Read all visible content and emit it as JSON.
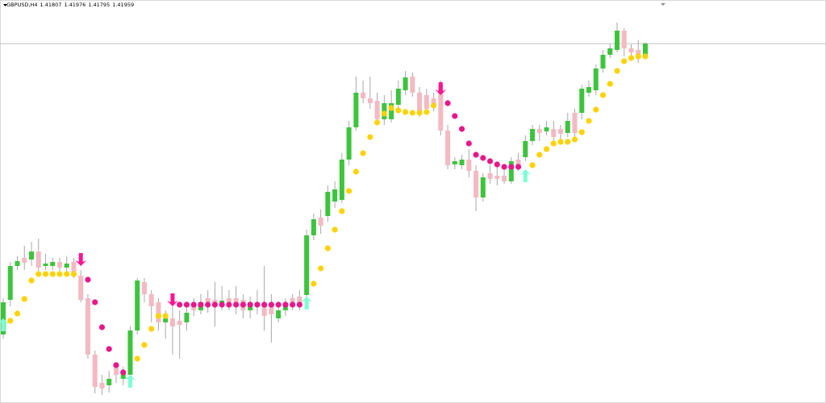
{
  "chart_data": {
    "type": "candlestick",
    "title": "GBPUSD,H4",
    "ylim": [
      1.375,
      1.425
    ],
    "price_line": 1.41959,
    "up_color": "#3dc43d",
    "down_color": "#f4b9c2",
    "open": [
      1.3835,
      1.3878,
      1.392,
      1.393,
      1.3928,
      1.3938,
      1.392,
      1.392,
      1.3925,
      1.3918,
      1.3925,
      1.3908,
      1.388,
      1.381,
      1.3775,
      1.3772,
      1.3795,
      1.378,
      1.3785,
      1.384,
      1.39,
      1.3885,
      1.3875,
      1.385,
      1.3855,
      1.3852,
      1.385,
      1.387,
      1.3865,
      1.388,
      1.3878,
      1.3872,
      1.388,
      1.388,
      1.3878,
      1.3865,
      1.3875,
      1.3872,
      1.387,
      1.3855,
      1.3865,
      1.388,
      1.3882,
      1.3884,
      1.3958,
      1.398,
      1.3982,
      1.4,
      1.4002,
      1.4052,
      1.4092,
      1.4135,
      1.4128,
      1.4125,
      1.4102,
      1.4102,
      1.412,
      1.4138,
      1.4155,
      1.4135,
      1.4132,
      1.4128,
      1.4145,
      1.4088,
      1.4046,
      1.4045,
      1.4052,
      1.4038,
      1.4005,
      1.4035,
      1.4032,
      1.4032,
      1.4025,
      1.4052,
      1.4055,
      1.4075,
      1.409,
      1.4087,
      1.409,
      1.409,
      1.4085,
      1.411,
      1.411,
      1.4135,
      1.4138,
      1.4165,
      1.4182,
      1.4188,
      1.4212,
      1.419,
      1.4188,
      1.41807
    ],
    "high": [
      1.388,
      1.3925,
      1.3932,
      1.3945,
      1.395,
      1.3954,
      1.3935,
      1.393,
      1.393,
      1.3932,
      1.393,
      1.3915,
      1.3885,
      1.3815,
      1.3785,
      1.379,
      1.38,
      1.3795,
      1.3845,
      1.3905,
      1.3905,
      1.389,
      1.388,
      1.3865,
      1.387,
      1.3865,
      1.387,
      1.388,
      1.3885,
      1.389,
      1.39,
      1.3895,
      1.389,
      1.3895,
      1.3885,
      1.3882,
      1.389,
      1.392,
      1.3885,
      1.3875,
      1.388,
      1.3885,
      1.389,
      1.3965,
      1.3985,
      1.399,
      1.402,
      1.4025,
      1.406,
      1.41,
      1.4155,
      1.415,
      1.4155,
      1.4135,
      1.4132,
      1.4138,
      1.415,
      1.4162,
      1.416,
      1.4142,
      1.414,
      1.4135,
      1.415,
      1.4095,
      1.4055,
      1.4058,
      1.4065,
      1.4045,
      1.4035,
      1.4045,
      1.4045,
      1.404,
      1.4055,
      1.406,
      1.4082,
      1.4095,
      1.4095,
      1.41,
      1.41,
      1.4095,
      1.411,
      1.4115,
      1.4145,
      1.415,
      1.417,
      1.4188,
      1.4195,
      1.4222,
      1.4215,
      1.4195,
      1.42,
      1.41976
    ],
    "low": [
      1.383,
      1.387,
      1.3915,
      1.3915,
      1.392,
      1.3914,
      1.3915,
      1.3915,
      1.3914,
      1.391,
      1.3905,
      1.3875,
      1.3805,
      1.3762,
      1.376,
      1.3763,
      1.3775,
      1.3772,
      1.378,
      1.3835,
      1.3875,
      1.385,
      1.384,
      1.383,
      1.381,
      1.3805,
      1.384,
      1.3858,
      1.386,
      1.3862,
      1.3845,
      1.3865,
      1.3865,
      1.386,
      1.3855,
      1.3855,
      1.386,
      1.384,
      1.3825,
      1.385,
      1.3858,
      1.3865,
      1.3865,
      1.388,
      1.3952,
      1.396,
      1.3975,
      1.3992,
      1.3998,
      1.4045,
      1.4088,
      1.4122,
      1.4115,
      1.4095,
      1.4095,
      1.4098,
      1.4115,
      1.4132,
      1.413,
      1.4105,
      1.411,
      1.4112,
      1.4082,
      1.404,
      1.404,
      1.404,
      1.403,
      1.3988,
      1.4,
      1.4022,
      1.402,
      1.4022,
      1.4022,
      1.4038,
      1.405,
      1.407,
      1.4075,
      1.4082,
      1.407,
      1.4075,
      1.408,
      1.4078,
      1.4102,
      1.413,
      1.4132,
      1.416,
      1.4178,
      1.4185,
      1.418,
      1.4178,
      1.4172,
      1.41795
    ],
    "close": [
      1.3875,
      1.392,
      1.3926,
      1.3924,
      1.3938,
      1.3918,
      1.3923,
      1.3925,
      1.3918,
      1.3923,
      1.3908,
      1.3878,
      1.381,
      1.377,
      1.3768,
      1.378,
      1.3785,
      1.3788,
      1.384,
      1.3902,
      1.3885,
      1.387,
      1.385,
      1.3855,
      1.3845,
      1.3847,
      1.3862,
      1.3865,
      1.3875,
      1.3875,
      1.387,
      1.3877,
      1.3875,
      1.3872,
      1.3865,
      1.3875,
      1.387,
      1.3858,
      1.386,
      1.3865,
      1.3874,
      1.3875,
      1.3872,
      1.3958,
      1.3978,
      1.397,
      1.4012,
      1.4015,
      1.4052,
      1.4092,
      1.4135,
      1.4128,
      1.4122,
      1.4102,
      1.4122,
      1.4122,
      1.414,
      1.4154,
      1.4135,
      1.411,
      1.4115,
      1.4118,
      1.4088,
      1.4045,
      1.405,
      1.4052,
      1.4038,
      1.4005,
      1.403,
      1.4028,
      1.4028,
      1.4025,
      1.405,
      1.4045,
      1.4075,
      1.409,
      1.4085,
      1.4092,
      1.408,
      1.4084,
      1.41,
      1.4085,
      1.414,
      1.4142,
      1.4165,
      1.4182,
      1.419,
      1.4212,
      1.419,
      1.4185,
      1.4178,
      1.41959
    ],
    "series": [
      {
        "color": "#ffd200",
        "values": [
          null,
          1.3852,
          1.3861,
          1.3879,
          1.3902,
          1.391,
          1.391,
          1.391,
          1.391,
          1.391,
          1.391,
          null,
          null,
          null,
          null,
          null,
          null,
          null,
          null,
          1.3805,
          1.3822,
          1.3842,
          1.3858,
          1.3858,
          null,
          null,
          null,
          null,
          null,
          null,
          null,
          null,
          null,
          null,
          null,
          null,
          null,
          null,
          null,
          null,
          null,
          null,
          null,
          null,
          1.3898,
          1.3917,
          1.3942,
          1.3965,
          1.3988,
          1.4013,
          1.4037,
          1.406,
          1.408,
          1.4098,
          1.4109,
          1.4116,
          1.4113,
          1.4111,
          1.411,
          1.411,
          1.4111,
          1.4119,
          null,
          null,
          null,
          null,
          null,
          null,
          null,
          null,
          null,
          null,
          null,
          null,
          null,
          1.4045,
          1.4058,
          1.4065,
          1.4072,
          1.4074,
          1.4074,
          1.4077,
          1.4086,
          1.41,
          1.4114,
          1.4132,
          1.4146,
          1.4162,
          1.4174,
          1.4178,
          1.418,
          1.418
        ]
      },
      {
        "color": "#e8178a",
        "values": [
          null,
          null,
          null,
          null,
          null,
          null,
          null,
          null,
          null,
          null,
          null,
          null,
          1.3903,
          1.3875,
          1.3844,
          1.3817,
          1.3797,
          1.3788,
          null,
          null,
          null,
          null,
          null,
          null,
          null,
          1.3872,
          1.3872,
          1.3872,
          1.3872,
          1.3872,
          1.3872,
          1.3872,
          1.3872,
          1.3872,
          1.3872,
          1.3872,
          1.3872,
          1.3872,
          1.3872,
          1.3872,
          1.3872,
          1.3872,
          1.3872,
          null,
          null,
          null,
          null,
          null,
          null,
          null,
          null,
          null,
          null,
          null,
          null,
          null,
          null,
          null,
          null,
          null,
          null,
          null,
          null,
          1.4122,
          1.4106,
          1.409,
          1.4072,
          1.4058,
          1.4054,
          1.405,
          1.4046,
          1.4043,
          1.4043,
          1.4043,
          null,
          null,
          null,
          null,
          null,
          null,
          null,
          null,
          null,
          null,
          null,
          null,
          null,
          null,
          null,
          null,
          null,
          null
        ]
      }
    ],
    "buy_signals": {
      "color": "#7fffd4",
      "values": [
        1.3855,
        null,
        null,
        null,
        null,
        null,
        null,
        null,
        null,
        null,
        null,
        null,
        null,
        null,
        null,
        null,
        null,
        null,
        1.3785,
        null,
        null,
        null,
        null,
        null,
        null,
        null,
        null,
        null,
        null,
        null,
        null,
        null,
        null,
        null,
        null,
        null,
        null,
        null,
        null,
        null,
        null,
        null,
        null,
        1.3882,
        null,
        null,
        null,
        null,
        null,
        null,
        null,
        null,
        null,
        null,
        null,
        null,
        null,
        null,
        null,
        null,
        null,
        null,
        null,
        null,
        null,
        null,
        null,
        null,
        null,
        null,
        null,
        null,
        null,
        null,
        1.404,
        null,
        null,
        null,
        null,
        null,
        null,
        null,
        null,
        null,
        null,
        null,
        null,
        null,
        null,
        null,
        null,
        null
      ]
    },
    "sell_signals": {
      "color": "#ff1493",
      "values": [
        null,
        null,
        null,
        null,
        null,
        null,
        null,
        null,
        null,
        null,
        null,
        1.392,
        null,
        null,
        null,
        null,
        null,
        null,
        null,
        null,
        null,
        null,
        null,
        null,
        1.387,
        null,
        null,
        null,
        null,
        null,
        null,
        null,
        null,
        null,
        null,
        null,
        null,
        null,
        null,
        null,
        null,
        null,
        null,
        null,
        null,
        null,
        null,
        null,
        null,
        null,
        null,
        null,
        null,
        null,
        null,
        null,
        null,
        null,
        null,
        null,
        null,
        null,
        1.4132,
        null,
        null,
        null,
        null,
        null,
        null,
        null,
        null,
        null,
        null,
        null,
        null,
        null,
        null,
        null,
        null,
        null,
        null,
        null,
        null,
        null,
        null,
        null,
        null,
        null,
        null,
        null,
        null,
        null
      ]
    }
  }
}
